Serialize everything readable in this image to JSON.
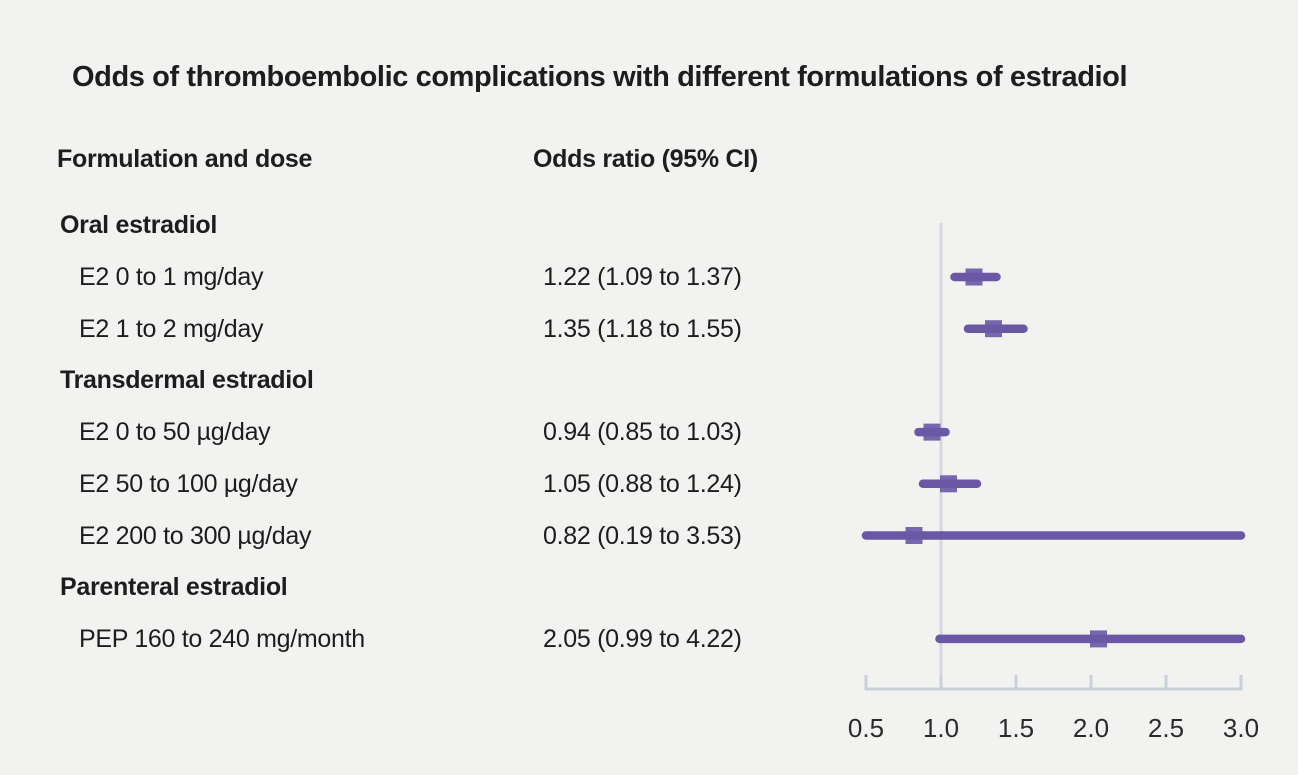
{
  "title": "Odds of thromboembolic complications with different formulations of estradiol",
  "columns": {
    "formulation": "Formulation and dose",
    "odds_ratio": "Odds ratio (95% CI)"
  },
  "colors": {
    "background": "#f2f2f1",
    "text": "#1d1d1d",
    "tick_label_text": "#2b2b2b",
    "ci_line": "#6a58a4",
    "marker": "#7767ae",
    "reference_line": "#d4d8de",
    "axis_line": "#c9d0d9"
  },
  "chart_data": {
    "type": "forest",
    "title": "Odds of thromboembolic complications with different formulations of estradiol",
    "xlim": [
      0.5,
      3.0
    ],
    "reference_value": 1.0,
    "tick_values": [
      0.5,
      1.0,
      1.5,
      2.0,
      2.5,
      3.0
    ],
    "tick_labels": [
      "0.5",
      "1.0",
      "1.5",
      "2.0",
      "2.5",
      "3.0"
    ],
    "grid": false,
    "legend": false,
    "rows": [
      {
        "label": "Oral estradiol",
        "group": true
      },
      {
        "label": "E2 0 to 1 mg/day",
        "group": false,
        "value_text": "1.22 (1.09 to 1.37)",
        "est": 1.22,
        "lo": 1.09,
        "hi": 1.37
      },
      {
        "label": "E2 1 to 2 mg/day",
        "group": false,
        "value_text": "1.35 (1.18 to 1.55)",
        "est": 1.35,
        "lo": 1.18,
        "hi": 1.55
      },
      {
        "label": "Transdermal estradiol",
        "group": true
      },
      {
        "label": "E2 0 to 50 µg/day",
        "group": false,
        "value_text": "0.94 (0.85 to 1.03)",
        "est": 0.94,
        "lo": 0.85,
        "hi": 1.03
      },
      {
        "label": "E2 50 to 100 µg/day",
        "group": false,
        "value_text": "1.05 (0.88 to 1.24)",
        "est": 1.05,
        "lo": 0.88,
        "hi": 1.24
      },
      {
        "label": "E2 200 to 300 µg/day",
        "group": false,
        "value_text": "0.82 (0.19 to 3.53)",
        "est": 0.82,
        "lo": 0.19,
        "hi": 3.53
      },
      {
        "label": "Parenteral estradiol",
        "group": true
      },
      {
        "label": "PEP 160 to 240 mg/month",
        "group": false,
        "value_text": "2.05 (0.99 to 4.22)",
        "est": 2.05,
        "lo": 0.99,
        "hi": 4.22
      }
    ]
  }
}
